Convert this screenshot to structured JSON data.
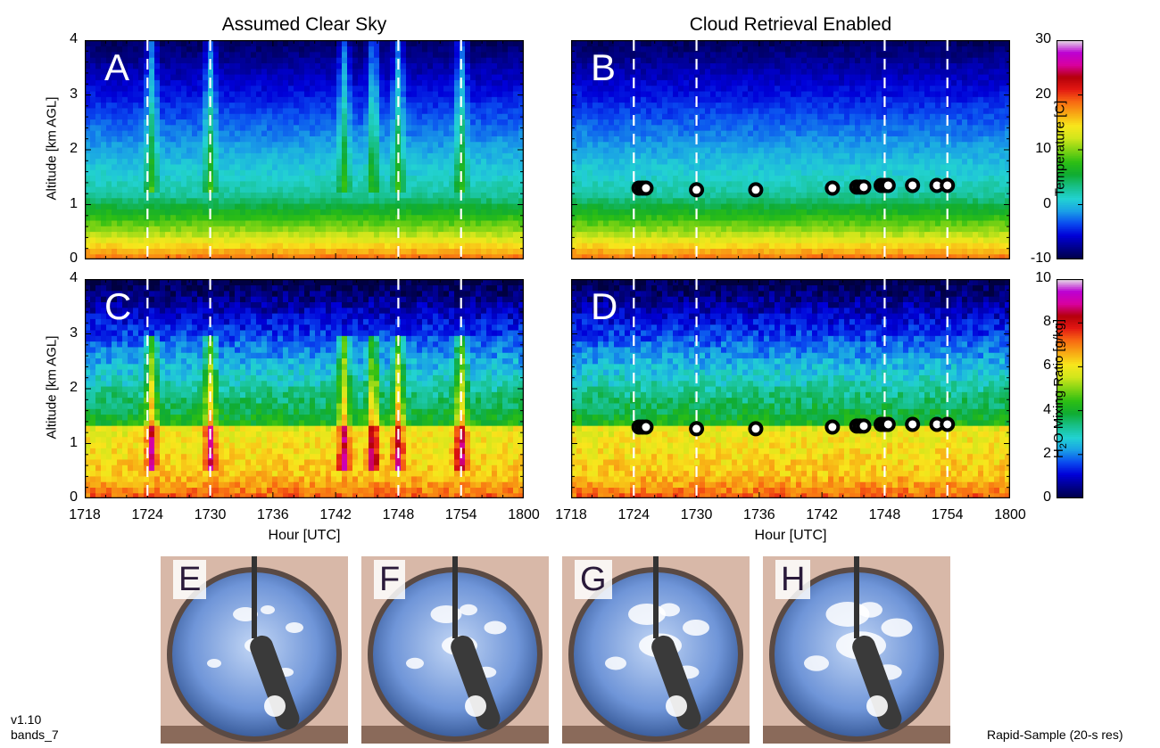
{
  "columns": {
    "left_title": "Assumed Clear Sky",
    "right_title": "Cloud Retrieval Enabled"
  },
  "chart_data": [
    {
      "id": "A",
      "type": "heatmap",
      "panel_label": "A",
      "field": "temperature",
      "ylabel": "Altitude [km AGL]",
      "ylim": [
        0,
        4
      ],
      "yticks": [
        "0",
        "1",
        "2",
        "3",
        "4"
      ],
      "xlim": [
        "1718",
        "1800"
      ],
      "xticks": [],
      "xlabel": "",
      "dashed_lines_hhmm": [
        "1724",
        "1730",
        "1748",
        "1754"
      ],
      "cloud_points": []
    },
    {
      "id": "B",
      "type": "heatmap",
      "panel_label": "B",
      "field": "temperature",
      "ylabel": "",
      "ylim": [
        0,
        4
      ],
      "yticks": [],
      "xlim": [
        "1718",
        "1800"
      ],
      "xticks": [],
      "xlabel": "",
      "dashed_lines_hhmm": [
        "1724",
        "1730",
        "1748",
        "1754"
      ],
      "cloud_points": [
        {
          "x": "17:24:30",
          "y": 1.3
        },
        {
          "x": "17:24:50",
          "y": 1.3
        },
        {
          "x": "17:25:10",
          "y": 1.3
        },
        {
          "x": "17:30:00",
          "y": 1.27
        },
        {
          "x": "17:35:40",
          "y": 1.27
        },
        {
          "x": "17:43:00",
          "y": 1.3
        },
        {
          "x": "17:45:20",
          "y": 1.32
        },
        {
          "x": "17:45:40",
          "y": 1.32
        },
        {
          "x": "17:46:00",
          "y": 1.32
        },
        {
          "x": "17:47:40",
          "y": 1.35
        },
        {
          "x": "17:48:00",
          "y": 1.35
        },
        {
          "x": "17:48:20",
          "y": 1.35
        },
        {
          "x": "17:50:40",
          "y": 1.35
        },
        {
          "x": "17:53:00",
          "y": 1.35
        },
        {
          "x": "17:54:00",
          "y": 1.35
        }
      ]
    },
    {
      "id": "C",
      "type": "heatmap",
      "panel_label": "C",
      "field": "water_vapor",
      "ylabel": "Altitude [km AGL]",
      "ylim": [
        0,
        4
      ],
      "yticks": [
        "0",
        "1",
        "2",
        "3",
        "4"
      ],
      "xlim": [
        "1718",
        "1800"
      ],
      "xticks": [
        "1718",
        "1724",
        "1730",
        "1736",
        "1742",
        "1748",
        "1754",
        "1800"
      ],
      "xlabel": "Hour [UTC]",
      "dashed_lines_hhmm": [
        "1724",
        "1730",
        "1748",
        "1754"
      ],
      "cloud_points": []
    },
    {
      "id": "D",
      "type": "heatmap",
      "panel_label": "D",
      "field": "water_vapor",
      "ylabel": "",
      "ylim": [
        0,
        4
      ],
      "yticks": [],
      "xlim": [
        "1718",
        "1800"
      ],
      "xticks": [
        "1718",
        "1724",
        "1730",
        "1736",
        "1742",
        "1748",
        "1754",
        "1800"
      ],
      "xlabel": "Hour [UTC]",
      "dashed_lines_hhmm": [
        "1724",
        "1730",
        "1748",
        "1754"
      ],
      "cloud_points": [
        {
          "x": "17:24:30",
          "y": 1.3
        },
        {
          "x": "17:24:50",
          "y": 1.3
        },
        {
          "x": "17:25:10",
          "y": 1.3
        },
        {
          "x": "17:30:00",
          "y": 1.27
        },
        {
          "x": "17:35:40",
          "y": 1.27
        },
        {
          "x": "17:43:00",
          "y": 1.3
        },
        {
          "x": "17:45:20",
          "y": 1.32
        },
        {
          "x": "17:45:40",
          "y": 1.32
        },
        {
          "x": "17:46:00",
          "y": 1.32
        },
        {
          "x": "17:47:40",
          "y": 1.35
        },
        {
          "x": "17:48:00",
          "y": 1.35
        },
        {
          "x": "17:48:20",
          "y": 1.35
        },
        {
          "x": "17:50:40",
          "y": 1.35
        },
        {
          "x": "17:53:00",
          "y": 1.35
        },
        {
          "x": "17:54:00",
          "y": 1.35
        }
      ]
    }
  ],
  "colorbars": {
    "temperature": {
      "label": "Temperature [C]",
      "range": [
        -10,
        30
      ],
      "ticks": [
        "-10",
        "0",
        "10",
        "20",
        "30"
      ]
    },
    "water_vapor": {
      "label_prefix": "H",
      "label_sub": "2",
      "label_suffix": "O Mixing Ratio [g/kg]",
      "range": [
        0,
        10
      ],
      "ticks": [
        "0",
        "2",
        "4",
        "6",
        "8",
        "10"
      ]
    },
    "colors": [
      "#000040",
      "#00008c",
      "#0000d8",
      "#0a4cf0",
      "#1aa0e6",
      "#22d2d2",
      "#18c08a",
      "#10ac32",
      "#2cbe14",
      "#80d414",
      "#d2e61c",
      "#f8e61c",
      "#f8a814",
      "#f86812",
      "#e21812",
      "#b4000a",
      "#d800a0",
      "#bc00d2",
      "#e6dce6"
    ]
  },
  "photos": [
    {
      "label": "E"
    },
    {
      "label": "F"
    },
    {
      "label": "G"
    },
    {
      "label": "H"
    }
  ],
  "footer": {
    "version": "v1.10",
    "bands": "bands_7",
    "mode": "Rapid-Sample (20-s res)"
  }
}
